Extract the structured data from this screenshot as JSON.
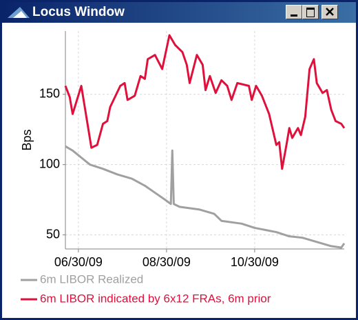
{
  "window": {
    "title": "Locus Window"
  },
  "chart_data": {
    "type": "line",
    "ylabel": "Bps",
    "xlim": [
      "2009-06-21",
      "2009-12-31"
    ],
    "xticks": [
      {
        "value": "2009-06-30",
        "label": "06/30/09"
      },
      {
        "value": "2009-08-30",
        "label": "08/30/09"
      },
      {
        "value": "2009-10-30",
        "label": "10/30/09"
      }
    ],
    "ylim": [
      40,
      195
    ],
    "yticks": [
      50,
      100,
      150
    ],
    "grid": true,
    "series": [
      {
        "name": "6m LIBOR Realized",
        "color": "#a0a0a0",
        "x": [
          "2009-06-21",
          "2009-06-26",
          "2009-07-02",
          "2009-07-08",
          "2009-07-17",
          "2009-07-27",
          "2009-08-06",
          "2009-08-15",
          "2009-08-22",
          "2009-08-29",
          "2009-09-02",
          "2009-09-03",
          "2009-09-04",
          "2009-09-08",
          "2009-09-22",
          "2009-10-02",
          "2009-10-07",
          "2009-10-21",
          "2009-10-30",
          "2009-11-14",
          "2009-11-23",
          "2009-12-02",
          "2009-12-12",
          "2009-12-22",
          "2009-12-29",
          "2009-12-31"
        ],
        "values": [
          113,
          110,
          105,
          100,
          97,
          93,
          90,
          85,
          80,
          75,
          72,
          110,
          72,
          70,
          68,
          65,
          60,
          58,
          55,
          52,
          49,
          48,
          45,
          42,
          41,
          44
        ]
      },
      {
        "name": "6m LIBOR indicated by 6x12 FRAs, 6m prior",
        "color": "#e0103c",
        "x": [
          "2009-06-21",
          "2009-06-24",
          "2009-06-26",
          "2009-07-02",
          "2009-07-09",
          "2009-07-13",
          "2009-07-17",
          "2009-07-20",
          "2009-07-22",
          "2009-07-29",
          "2009-08-01",
          "2009-08-03",
          "2009-08-08",
          "2009-08-12",
          "2009-08-15",
          "2009-08-17",
          "2009-08-22",
          "2009-08-27",
          "2009-09-01",
          "2009-09-05",
          "2009-09-10",
          "2009-09-13",
          "2009-09-15",
          "2009-09-20",
          "2009-09-24",
          "2009-09-26",
          "2009-09-29",
          "2009-10-03",
          "2009-10-07",
          "2009-10-11",
          "2009-10-14",
          "2009-10-18",
          "2009-10-26",
          "2009-10-28",
          "2009-10-31",
          "2009-11-04",
          "2009-11-09",
          "2009-11-14",
          "2009-11-16",
          "2009-11-18",
          "2009-11-21",
          "2009-11-23",
          "2009-11-25",
          "2009-11-29",
          "2009-12-01",
          "2009-12-04",
          "2009-12-07",
          "2009-12-10",
          "2009-12-12",
          "2009-12-16",
          "2009-12-19",
          "2009-12-22",
          "2009-12-25",
          "2009-12-29",
          "2009-12-31"
        ],
        "values": [
          156,
          148,
          136,
          156,
          112,
          114,
          129,
          131,
          141,
          156,
          158,
          146,
          149,
          163,
          161,
          175,
          178,
          168,
          192,
          185,
          180,
          171,
          158,
          178,
          171,
          153,
          163,
          151,
          160,
          156,
          146,
          158,
          156,
          146,
          156,
          149,
          136,
          114,
          116,
          97,
          114,
          126,
          119,
          126,
          121,
          134,
          168,
          175,
          158,
          151,
          153,
          139,
          131,
          129,
          126
        ]
      }
    ]
  }
}
